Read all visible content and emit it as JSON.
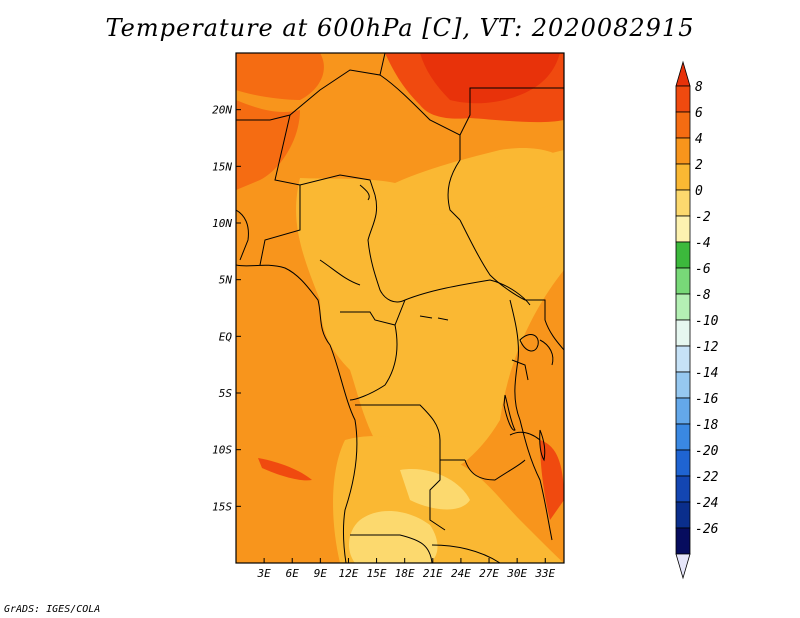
{
  "title": "Temperature at 600hPa [C], VT: 2020082915",
  "credit": "GrADS: IGES/COLA",
  "map": {
    "lon_range": [
      0,
      35
    ],
    "lat_range": [
      -20,
      25
    ],
    "lon_ticks": [
      {
        "value": 3,
        "label": "3E"
      },
      {
        "value": 6,
        "label": "6E"
      },
      {
        "value": 9,
        "label": "9E"
      },
      {
        "value": 12,
        "label": "12E"
      },
      {
        "value": 15,
        "label": "15E"
      },
      {
        "value": 18,
        "label": "18E"
      },
      {
        "value": 21,
        "label": "21E"
      },
      {
        "value": 24,
        "label": "24E"
      },
      {
        "value": 27,
        "label": "27E"
      },
      {
        "value": 30,
        "label": "30E"
      },
      {
        "value": 33,
        "label": "33E"
      }
    ],
    "lat_ticks": [
      {
        "value": 20,
        "label": "20N"
      },
      {
        "value": 15,
        "label": "15N"
      },
      {
        "value": 10,
        "label": "10N"
      },
      {
        "value": 5,
        "label": "5N"
      },
      {
        "value": 0,
        "label": "EQ"
      },
      {
        "value": -5,
        "label": "5S"
      },
      {
        "value": -10,
        "label": "10S"
      },
      {
        "value": -15,
        "label": "15S"
      }
    ]
  },
  "colorbar": {
    "labels": [
      "8",
      "6",
      "4",
      "2",
      "0",
      "-2",
      "-4",
      "-6",
      "-8",
      "-10",
      "-12",
      "-14",
      "-16",
      "-18",
      "-20",
      "-22",
      "-24",
      "-26"
    ],
    "colors": [
      "#e8320a",
      "#f04a0f",
      "#f56c12",
      "#f8951c",
      "#fab833",
      "#fcd96e",
      "#fdf2b0",
      "#3cb93c",
      "#78d978",
      "#b4f0b4",
      "#e6f7f0",
      "#c6e2f7",
      "#96c8f0",
      "#64a8ea",
      "#3a88e2",
      "#1f64d2",
      "#1346b2",
      "#0a2e8c",
      "#060c5e",
      "#e6e6fa"
    ]
  }
}
